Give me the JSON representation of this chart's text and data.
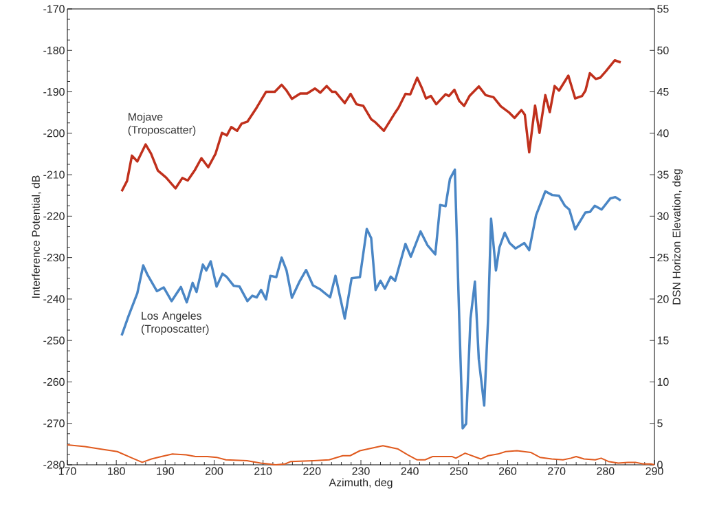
{
  "chart_data": {
    "type": "line",
    "xlabel": "Azimuth, deg",
    "ylabel": "Interference Potential, dB",
    "y2label": "DSN Horizon Elevation, deg",
    "xlim": [
      170,
      290
    ],
    "xticks": [
      170,
      180,
      190,
      200,
      210,
      220,
      230,
      240,
      250,
      260,
      270,
      280,
      290
    ],
    "ylim": [
      -280,
      -170
    ],
    "yticks": [
      -280,
      -270,
      -260,
      -250,
      -240,
      -230,
      -220,
      -210,
      -200,
      -190,
      -180,
      -170
    ],
    "y2lim": [
      0,
      55
    ],
    "y2ticks": [
      0,
      5,
      10,
      15,
      20,
      25,
      30,
      35,
      40,
      45,
      50,
      55
    ],
    "series": [
      {
        "name": "Mojave (Troposcatter)",
        "color": "#c0301c",
        "x": [
          181.1,
          182.2,
          183.2,
          184.3,
          186.0,
          187.1,
          188.5,
          190.2,
          192.1,
          193.5,
          194.6,
          196.0,
          197.4,
          198.8,
          200.3,
          201.6,
          202.6,
          203.5,
          204.7,
          205.6,
          206.8,
          208.7,
          210.6,
          212.4,
          213.8,
          214.8,
          215.9,
          217.6,
          219.0,
          220.6,
          221.7,
          223.0,
          224.1,
          224.8,
          226.7,
          227.9,
          229.1,
          230.5,
          232.1,
          233.0,
          234.7,
          236.8,
          237.7,
          239.1,
          240.1,
          241.5,
          242.4,
          243.3,
          244.3,
          245.4,
          247.3,
          248.0,
          249.1,
          250.1,
          251.1,
          252.2,
          254.1,
          255.5,
          257.1,
          258.6,
          260.2,
          261.4,
          262.8,
          263.5,
          264.4,
          265.6,
          266.5,
          267.7,
          268.6,
          269.6,
          270.5,
          272.4,
          273.8,
          275.2,
          275.9,
          276.8,
          278.0,
          278.9,
          280.1,
          281.9,
          283.1
        ],
        "values": [
          -214.0,
          -211.5,
          -205.4,
          -206.8,
          -202.7,
          -204.9,
          -209.0,
          -210.7,
          -213.3,
          -210.8,
          -211.4,
          -209.0,
          -206.0,
          -208.2,
          -204.9,
          -199.9,
          -200.5,
          -198.5,
          -199.4,
          -197.7,
          -197.2,
          -193.8,
          -190.0,
          -190.0,
          -188.3,
          -189.7,
          -191.7,
          -190.4,
          -190.4,
          -189.2,
          -190.2,
          -188.6,
          -190.0,
          -190.0,
          -192.7,
          -190.5,
          -193.0,
          -193.4,
          -196.6,
          -197.4,
          -199.4,
          -195.4,
          -193.8,
          -190.5,
          -190.6,
          -186.6,
          -188.9,
          -191.6,
          -191.0,
          -193.0,
          -190.6,
          -191.0,
          -189.5,
          -192.2,
          -193.4,
          -191.0,
          -188.7,
          -190.8,
          -191.3,
          -193.5,
          -194.9,
          -196.3,
          -194.4,
          -195.5,
          -204.6,
          -193.3,
          -199.9,
          -190.8,
          -194.9,
          -188.6,
          -189.7,
          -186.1,
          -191.6,
          -191.0,
          -189.7,
          -185.5,
          -186.9,
          -186.6,
          -185.0,
          -182.4,
          -182.9
        ]
      },
      {
        "name": "Los Angeles (Troposcatter)",
        "color": "#4a86c5",
        "x": [
          181.1,
          182.5,
          184.3,
          185.5,
          186.4,
          188.3,
          189.7,
          191.3,
          193.2,
          194.4,
          195.6,
          196.4,
          197.7,
          198.4,
          199.3,
          200.5,
          201.7,
          202.6,
          204.0,
          205.2,
          206.8,
          207.8,
          208.7,
          209.6,
          210.6,
          211.5,
          212.7,
          213.8,
          214.8,
          215.9,
          217.4,
          218.8,
          220.2,
          221.6,
          223.7,
          224.8,
          226.7,
          228.1,
          229.8,
          231.2,
          232.1,
          233.0,
          234.0,
          234.9,
          236.1,
          237.0,
          239.1,
          240.2,
          242.2,
          243.6,
          245.2,
          246.2,
          247.3,
          248.2,
          249.2,
          250.1,
          250.8,
          251.5,
          252.4,
          253.3,
          254.1,
          255.2,
          256.0,
          256.6,
          257.6,
          258.3,
          259.4,
          260.4,
          261.6,
          263.4,
          264.4,
          265.8,
          267.7,
          269.1,
          270.5,
          271.7,
          272.6,
          273.8,
          275.9,
          276.8,
          277.8,
          279.2,
          281.0,
          282.0,
          283.1
        ],
        "values": [
          -248.8,
          -244.1,
          -238.6,
          -231.9,
          -234.2,
          -238.1,
          -237.2,
          -240.5,
          -237.1,
          -240.8,
          -236.1,
          -238.3,
          -231.7,
          -233.1,
          -230.9,
          -237.0,
          -233.9,
          -234.7,
          -236.8,
          -237.0,
          -240.5,
          -239.2,
          -239.6,
          -237.8,
          -240.1,
          -234.4,
          -234.7,
          -230.0,
          -233.1,
          -239.7,
          -235.9,
          -233.0,
          -236.7,
          -237.6,
          -239.6,
          -234.4,
          -244.7,
          -235.0,
          -234.7,
          -223.1,
          -225.3,
          -237.8,
          -235.6,
          -237.5,
          -234.6,
          -235.6,
          -226.7,
          -229.8,
          -223.7,
          -227.0,
          -229.2,
          -217.3,
          -217.6,
          -211.0,
          -208.8,
          -244.7,
          -271.2,
          -270.1,
          -244.7,
          -235.8,
          -254.6,
          -265.7,
          -244.7,
          -220.6,
          -233.1,
          -227.6,
          -224.0,
          -226.5,
          -227.8,
          -226.5,
          -228.2,
          -219.8,
          -214.0,
          -214.9,
          -215.1,
          -217.5,
          -218.4,
          -223.2,
          -219.1,
          -219.0,
          -217.5,
          -218.4,
          -215.7,
          -215.4,
          -216.2
        ]
      },
      {
        "axis": "y2",
        "color": "#e05a1e",
        "x": [
          170.0,
          173.6,
          176.7,
          180.2,
          183.3,
          185.3,
          187.2,
          189.2,
          191.5,
          194.3,
          196.2,
          198.6,
          200.5,
          202.4,
          206.7,
          209.5,
          212.6,
          214.5,
          215.7,
          220.4,
          223.5,
          226.3,
          227.8,
          229.8,
          234.5,
          237.6,
          239.6,
          241.5,
          243.1,
          244.7,
          248.6,
          249.4,
          251.3,
          254.5,
          256.0,
          258.0,
          259.6,
          261.9,
          264.7,
          266.6,
          269.0,
          271.3,
          272.9,
          274.0,
          275.6,
          277.9,
          279.1,
          280.6,
          282.6,
          284.6,
          286.1,
          287.7,
          289.3,
          290.0
        ],
        "values": [
          2.4,
          2.2,
          1.9,
          1.6,
          0.8,
          0.3,
          0.7,
          1.0,
          1.3,
          1.2,
          1.0,
          1.0,
          0.9,
          0.6,
          0.5,
          0.2,
          0.0,
          0.1,
          0.4,
          0.5,
          0.6,
          1.1,
          1.1,
          1.7,
          2.3,
          1.9,
          1.2,
          0.6,
          0.6,
          1.0,
          1.0,
          0.8,
          1.4,
          0.7,
          1.1,
          1.3,
          1.6,
          1.7,
          1.5,
          0.9,
          0.7,
          0.6,
          0.8,
          1.0,
          0.7,
          0.6,
          0.8,
          0.4,
          0.2,
          0.3,
          0.3,
          0.1,
          0.1,
          0.0
        ]
      }
    ]
  }
}
